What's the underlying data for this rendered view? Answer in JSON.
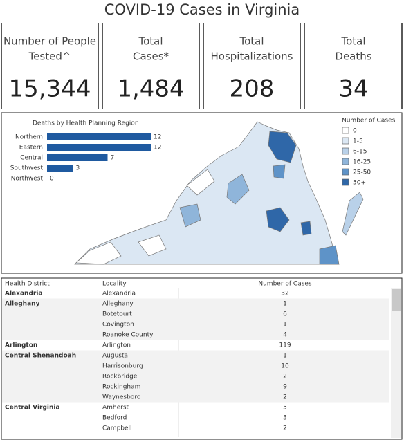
{
  "title": "COVID-19 Cases in Virginia",
  "kpis": [
    {
      "label_lines": [
        "Number of People",
        "Tested^"
      ],
      "value": "15,344"
    },
    {
      "label_lines": [
        "Total",
        "Cases*"
      ],
      "value": "1,484"
    },
    {
      "label_lines": [
        "Total",
        "Hospitalizations"
      ],
      "value": "208"
    },
    {
      "label_lines": [
        "Total",
        "Deaths"
      ],
      "value": "34"
    }
  ],
  "chart_data": {
    "type": "bar",
    "title": "Deaths by Health Planning Region",
    "categories": [
      "Northern",
      "Eastern",
      "Central",
      "Southwest",
      "Northwest"
    ],
    "values": [
      12,
      12,
      7,
      3,
      0
    ],
    "color": "#1f5aa0"
  },
  "map_legend": {
    "title": "Number of Cases",
    "items": [
      {
        "label": "0",
        "color": "#ffffff"
      },
      {
        "label": "1-5",
        "color": "#dbe7f3"
      },
      {
        "label": "6-15",
        "color": "#b9d1e9"
      },
      {
        "label": "16-25",
        "color": "#8fb5da"
      },
      {
        "label": "25-50",
        "color": "#5e93c8"
      },
      {
        "label": "50+",
        "color": "#2f67a8"
      }
    ]
  },
  "table": {
    "headers": [
      "Health District",
      "Locality",
      "Number of Cases"
    ],
    "districts": [
      {
        "name": "Alexandria",
        "localities": [
          {
            "name": "Alexandria",
            "cases": 32
          }
        ]
      },
      {
        "name": "Alleghany",
        "localities": [
          {
            "name": "Alleghany",
            "cases": 1
          },
          {
            "name": "Botetourt",
            "cases": 6
          },
          {
            "name": "Covington",
            "cases": 1
          },
          {
            "name": "Roanoke County",
            "cases": 4
          }
        ]
      },
      {
        "name": "Arlington",
        "localities": [
          {
            "name": "Arlington",
            "cases": 119
          }
        ]
      },
      {
        "name": "Central Shenandoah",
        "localities": [
          {
            "name": "Augusta",
            "cases": 1
          },
          {
            "name": "Harrisonburg",
            "cases": 10
          },
          {
            "name": "Rockbridge",
            "cases": 2
          },
          {
            "name": "Rockingham",
            "cases": 9
          },
          {
            "name": "Waynesboro",
            "cases": 2
          }
        ]
      },
      {
        "name": "Central Virginia",
        "localities": [
          {
            "name": "Amherst",
            "cases": 5
          },
          {
            "name": "Bedford",
            "cases": 3
          },
          {
            "name": "Campbell",
            "cases": 2
          }
        ]
      }
    ]
  }
}
